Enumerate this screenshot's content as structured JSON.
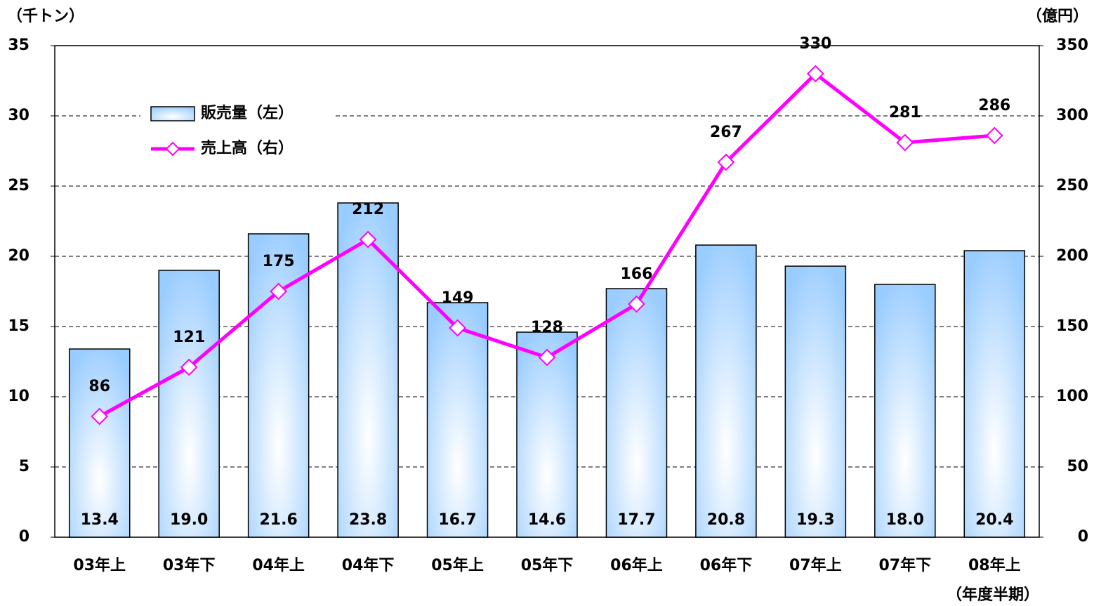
{
  "chart_data": {
    "type": "bar_line",
    "y_label": "（千トン）",
    "y2_label": "（億円）",
    "x_label": "（年度半期）",
    "categories": [
      "03年上",
      "03年下",
      "04年上",
      "04年下",
      "05年上",
      "05年下",
      "06年上",
      "06年下",
      "07年上",
      "07年下",
      "08年上"
    ],
    "series": [
      {
        "name": "販売量（左）",
        "type": "bar",
        "color": "#99ccff",
        "values": [
          13.4,
          19,
          21.6,
          23.8,
          16.7,
          14.6,
          17.7,
          20.8,
          19.3,
          18,
          20.4
        ],
        "value_labels": [
          "13.4",
          "19.0",
          "21.6",
          "23.8",
          "16.7",
          "14.6",
          "17.7",
          "20.8",
          "19.3",
          "18.0",
          "20.4"
        ]
      },
      {
        "name": "売上高（右）",
        "type": "line",
        "axis": "y2",
        "color": "#ff00ff",
        "values": [
          86,
          121,
          175,
          212,
          149,
          128,
          166,
          267,
          330,
          281,
          286
        ]
      }
    ],
    "ylim": [
      0,
      35
    ],
    "yticks": [
      0,
      5,
      10,
      15,
      20,
      25,
      30,
      35
    ],
    "y2lim": [
      0,
      350
    ],
    "y2ticks": [
      0,
      50,
      100,
      150,
      200,
      250,
      300,
      350
    ],
    "grid": true,
    "legend": "upper left"
  }
}
